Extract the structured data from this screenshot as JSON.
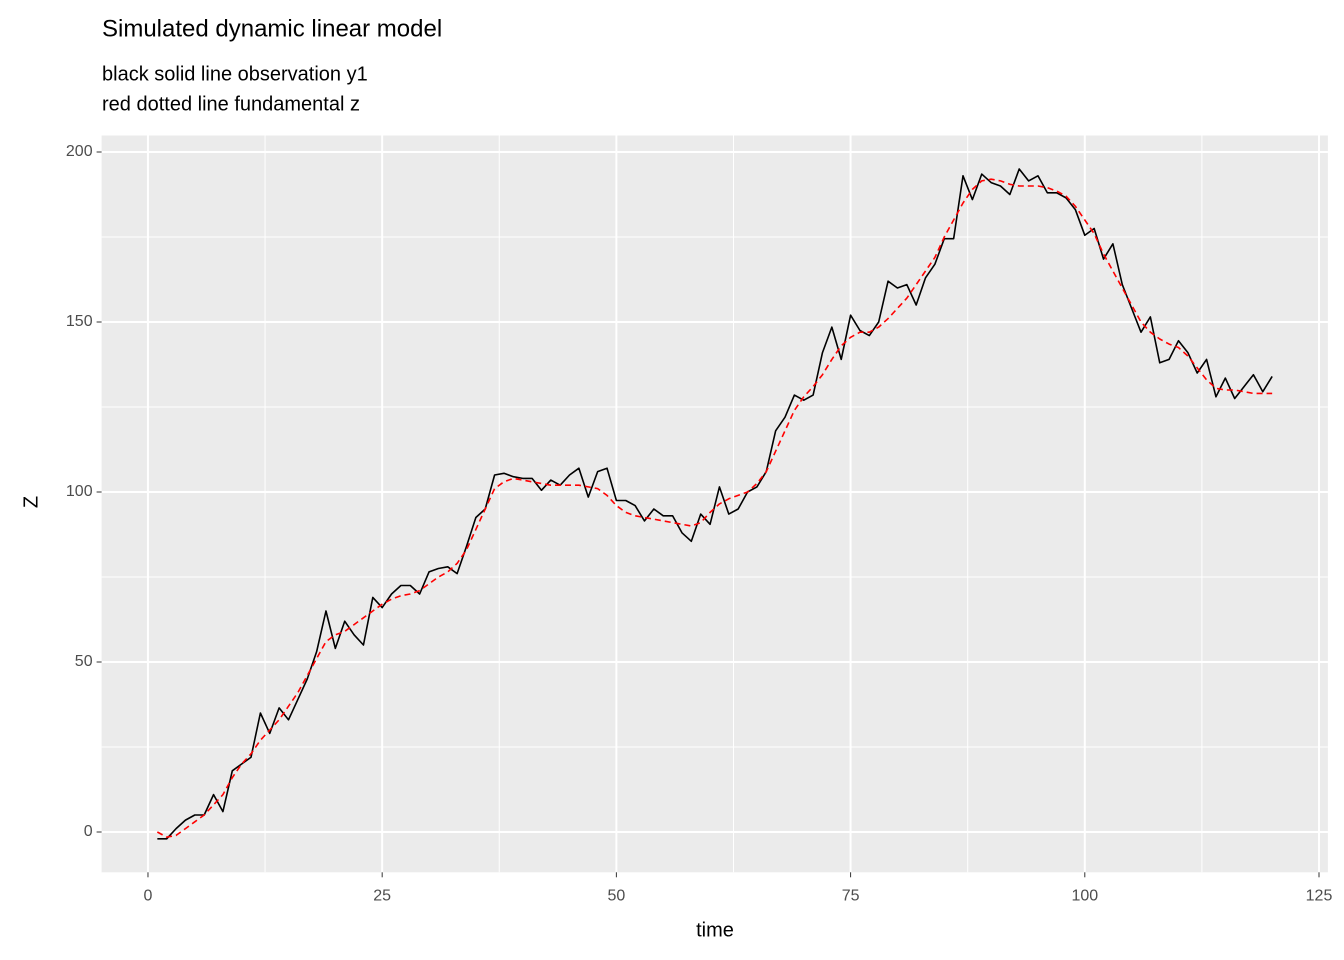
{
  "chart_data": {
    "type": "line",
    "title": "Simulated dynamic linear model",
    "subtitle": [
      "black solid line observation y1",
      "red dotted line fundamental z"
    ],
    "x_label": "time",
    "y_label": "Z",
    "x": [
      1,
      2,
      3,
      4,
      5,
      6,
      7,
      8,
      9,
      10,
      11,
      12,
      13,
      14,
      15,
      16,
      17,
      18,
      19,
      20,
      21,
      22,
      23,
      24,
      25,
      26,
      27,
      28,
      29,
      30,
      31,
      32,
      33,
      34,
      35,
      36,
      37,
      38,
      39,
      40,
      41,
      42,
      43,
      44,
      45,
      46,
      47,
      48,
      49,
      50,
      51,
      52,
      53,
      54,
      55,
      56,
      57,
      58,
      59,
      60,
      61,
      62,
      63,
      64,
      65,
      66,
      67,
      68,
      69,
      70,
      71,
      72,
      73,
      74,
      75,
      76,
      77,
      78,
      79,
      80,
      81,
      82,
      83,
      84,
      85,
      86,
      87,
      88,
      89,
      90,
      91,
      92,
      93,
      94,
      95,
      96,
      97,
      98,
      99,
      100,
      101,
      102,
      103,
      104,
      105,
      106,
      107,
      108,
      109,
      110,
      111,
      112,
      113,
      114,
      115,
      116,
      117,
      118,
      119,
      120
    ],
    "series": [
      {
        "color": "#000000",
        "dash": "solid",
        "values": [
          -2,
          -2,
          1,
          3.5,
          5,
          5,
          11,
          6,
          18,
          20,
          22,
          35,
          29,
          36.5,
          33,
          39,
          45,
          53,
          65,
          54,
          62,
          58,
          55,
          69,
          66,
          70,
          72.5,
          72.5,
          70,
          76.5,
          77.5,
          78,
          76,
          84,
          92.5,
          95,
          105,
          105.5,
          104.5,
          104,
          104,
          100.5,
          103.5,
          102,
          105,
          107,
          98.5,
          106,
          107,
          97.5,
          97.5,
          96,
          91.5,
          95,
          93,
          93,
          88,
          85.5,
          93.5,
          90.5,
          101.5,
          93.5,
          95,
          100,
          101.5,
          106,
          118,
          122,
          128.5,
          127,
          128.5,
          141,
          148.5,
          139,
          152,
          147.5,
          146,
          150,
          162,
          160,
          161,
          155,
          163,
          167,
          174.5,
          174.5,
          193,
          186,
          193.5,
          191,
          190,
          187.5,
          195,
          191.5,
          193,
          188,
          188,
          186.5,
          183,
          175.5,
          177.5,
          168.5,
          173,
          161,
          154,
          147,
          151.5,
          138,
          139,
          144.5,
          141,
          135,
          139,
          128,
          133.5,
          127.5,
          131,
          134.5,
          129.5,
          134
        ]
      },
      {
        "color": "#ff0000",
        "dash": "dashed",
        "values": [
          0,
          -1.5,
          -1,
          1,
          3,
          5,
          8,
          11,
          16,
          20,
          23,
          27,
          30,
          33,
          37,
          41,
          46,
          51,
          56,
          58,
          59,
          61,
          63,
          65,
          67,
          68.5,
          69.5,
          70,
          71,
          73,
          75,
          76.5,
          79,
          83,
          89,
          95,
          101,
          103,
          104,
          103.5,
          103,
          102.5,
          102,
          102,
          102,
          102,
          101.5,
          101,
          99,
          96,
          94,
          93,
          92.5,
          92,
          91.5,
          91,
          90.5,
          90,
          91,
          94,
          96.5,
          98,
          99,
          100,
          102.5,
          106,
          112,
          118,
          124,
          128,
          131,
          134.5,
          139,
          143,
          145.5,
          147,
          147,
          148.5,
          151,
          154,
          157,
          161,
          165,
          169,
          175,
          180,
          185,
          189,
          191.5,
          192,
          191.5,
          190.5,
          190,
          190,
          190,
          189.5,
          188.5,
          187,
          184,
          180,
          176,
          170,
          165,
          160,
          155,
          150,
          147,
          145,
          143.5,
          142.5,
          140,
          136.5,
          133,
          130.5,
          130,
          130,
          129.5,
          129,
          129,
          129
        ]
      }
    ],
    "xlim": [
      -4.95,
      125.95
    ],
    "xticks": [
      0,
      25,
      50,
      75,
      100,
      125
    ],
    "ylim": [
      -11.85,
      204.85
    ],
    "yticks": [
      0,
      50,
      100,
      150,
      200
    ],
    "grid": true
  }
}
